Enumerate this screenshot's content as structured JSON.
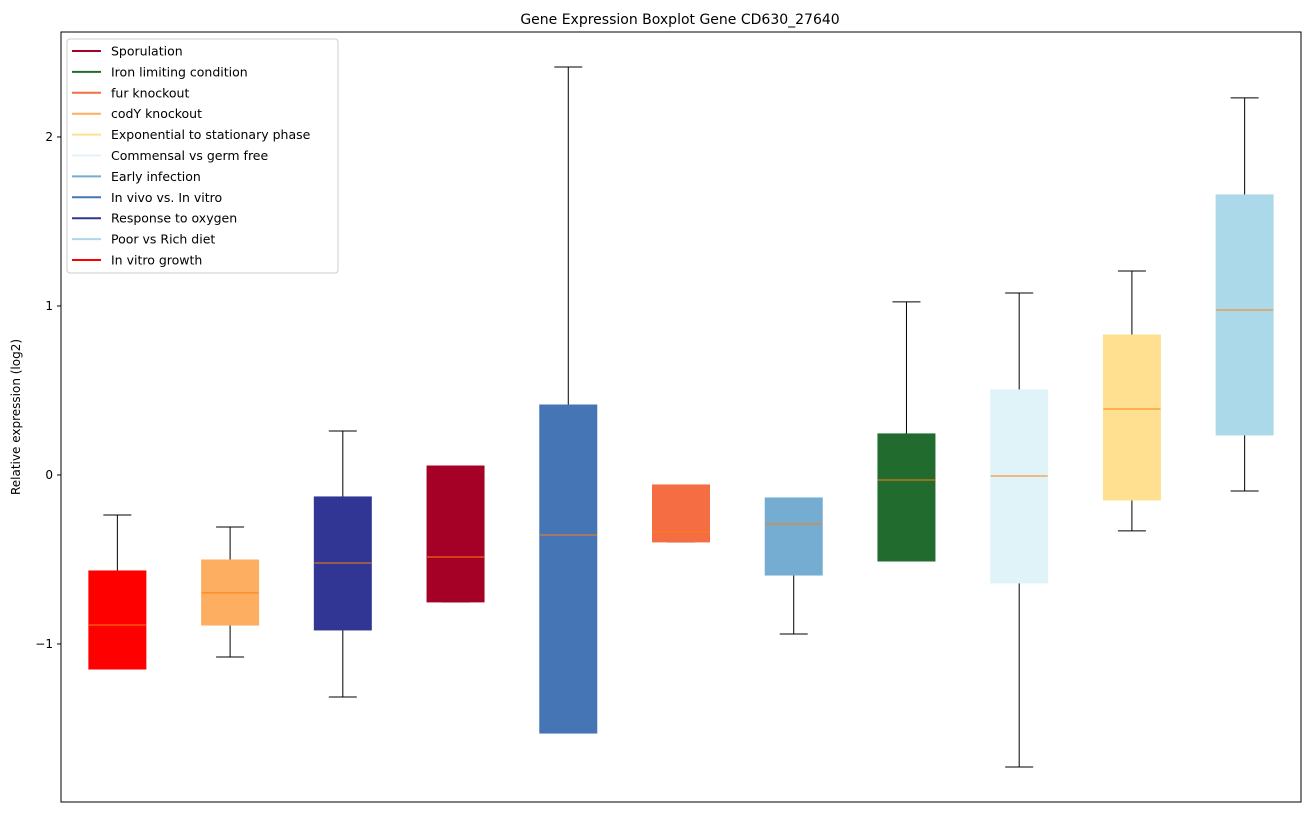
{
  "chart_data": {
    "type": "boxplot",
    "title": "Gene Expression Boxplot Gene CD630_27640",
    "xlabel": "",
    "ylabel": "Relative expression (log2)",
    "ylim": [
      -1.935,
      2.621
    ],
    "yticks": [
      -1,
      0,
      1,
      2
    ],
    "ytick_labels": [
      "−1",
      "0",
      "1",
      "2"
    ],
    "grid": false,
    "legend_placement": "top-left",
    "median_color": "#ff7f0e",
    "boxes": [
      {
        "name": "In vitro growth",
        "color": "#ff0000",
        "whislo": -1.148,
        "q1": -1.148,
        "med": -0.888,
        "q3": -0.568,
        "whishi": -0.237
      },
      {
        "name": "codY knockout",
        "color": "#fdae61",
        "whislo": -1.077,
        "q1": -0.888,
        "med": -0.698,
        "q3": -0.503,
        "whishi": -0.308
      },
      {
        "name": "Response to oxygen",
        "color": "#313695",
        "whislo": -1.314,
        "q1": -0.917,
        "med": -0.521,
        "q3": -0.13,
        "whishi": 0.26
      },
      {
        "name": "Sporulation",
        "color": "#a50026",
        "whislo": -0.751,
        "q1": -0.751,
        "med": -0.485,
        "q3": 0.053,
        "whishi": 0.053
      },
      {
        "name": "In vivo vs. In vitro",
        "color": "#4575b4",
        "whislo": -1.527,
        "q1": -1.527,
        "med": -0.355,
        "q3": 0.414,
        "whishi": 2.414
      },
      {
        "name": "fur knockout",
        "color": "#f46d43",
        "whislo": -0.396,
        "q1": -0.396,
        "med": -0.337,
        "q3": -0.059,
        "whishi": -0.059
      },
      {
        "name": "Early infection",
        "color": "#74add1",
        "whislo": -0.941,
        "q1": -0.592,
        "med": -0.29,
        "q3": -0.136,
        "whishi": -0.136
      },
      {
        "name": "Iron limiting condition",
        "color": "#226b2f",
        "whislo": -0.509,
        "q1": -0.509,
        "med": -0.03,
        "q3": 0.243,
        "whishi": 1.024
      },
      {
        "name": "Commensal vs germ free",
        "color": "#e0f3f8",
        "whislo": -1.728,
        "q1": -0.639,
        "med": -0.006,
        "q3": 0.503,
        "whishi": 1.077
      },
      {
        "name": "Exponential to stationary phase",
        "color": "#fee090",
        "whislo": -0.331,
        "q1": -0.148,
        "med": 0.39,
        "q3": 0.828,
        "whishi": 1.207
      },
      {
        "name": "Poor vs Rich diet",
        "color": "#abd9e9",
        "whislo": -0.095,
        "q1": 0.237,
        "med": 0.976,
        "q3": 1.657,
        "whishi": 2.231
      }
    ],
    "legend": [
      {
        "label": "Sporulation",
        "color": "#a50026"
      },
      {
        "label": "Iron limiting condition",
        "color": "#226b2f"
      },
      {
        "label": "fur knockout",
        "color": "#f46d43"
      },
      {
        "label": "codY knockout",
        "color": "#fdae61"
      },
      {
        "label": "Exponential to stationary phase",
        "color": "#fee090"
      },
      {
        "label": "Commensal vs germ free",
        "color": "#e0f3f8"
      },
      {
        "label": "Early infection",
        "color": "#74add1"
      },
      {
        "label": "In vivo vs. In vitro",
        "color": "#4575b4"
      },
      {
        "label": "Response to oxygen",
        "color": "#313695"
      },
      {
        "label": "Poor vs Rich diet",
        "color": "#abd9e9"
      },
      {
        "label": "In vitro growth",
        "color": "#ff0000"
      }
    ]
  }
}
